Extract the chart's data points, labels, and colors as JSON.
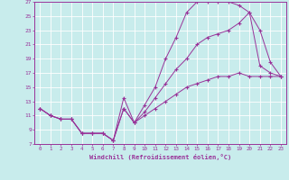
{
  "xlabel": "Windchill (Refroidissement éolien,°C)",
  "bg_color": "#c8ecec",
  "grid_color": "#ffffff",
  "line_color": "#993399",
  "xmin": -0.5,
  "xmax": 23.5,
  "ymin": 7,
  "ymax": 27,
  "yticks": [
    7,
    9,
    11,
    13,
    15,
    17,
    19,
    21,
    23,
    25,
    27
  ],
  "xticks": [
    0,
    1,
    2,
    3,
    4,
    5,
    6,
    7,
    8,
    9,
    10,
    11,
    12,
    13,
    14,
    15,
    16,
    17,
    18,
    19,
    20,
    21,
    22,
    23
  ],
  "line1_x": [
    0,
    1,
    2,
    3,
    4,
    5,
    6,
    7,
    8,
    9,
    10,
    11,
    12,
    13,
    14,
    15,
    16,
    17,
    18,
    19,
    20,
    21,
    22,
    23
  ],
  "line1_y": [
    12,
    11,
    10.5,
    10.5,
    8.5,
    8.5,
    8.5,
    7.5,
    13.5,
    10,
    12.5,
    15,
    19,
    22,
    25.5,
    27,
    27,
    27,
    27,
    26.5,
    25.5,
    18,
    17,
    16.5
  ],
  "line2_x": [
    0,
    1,
    2,
    3,
    4,
    5,
    6,
    7,
    8,
    9,
    10,
    11,
    12,
    13,
    14,
    15,
    16,
    17,
    18,
    19,
    20,
    21,
    22,
    23
  ],
  "line2_y": [
    12,
    11,
    10.5,
    10.5,
    8.5,
    8.5,
    8.5,
    7.5,
    12,
    10,
    11.5,
    13.5,
    15.5,
    17.5,
    19,
    21,
    22,
    22.5,
    23,
    24,
    25.5,
    23,
    18.5,
    16.5
  ],
  "line3_x": [
    0,
    1,
    2,
    3,
    4,
    5,
    6,
    7,
    8,
    9,
    10,
    11,
    12,
    13,
    14,
    15,
    16,
    17,
    18,
    19,
    20,
    21,
    22,
    23
  ],
  "line3_y": [
    12,
    11,
    10.5,
    10.5,
    8.5,
    8.5,
    8.5,
    7.5,
    12,
    10,
    11,
    12,
    13,
    14,
    15,
    15.5,
    16,
    16.5,
    16.5,
    17,
    16.5,
    16.5,
    16.5,
    16.5
  ]
}
